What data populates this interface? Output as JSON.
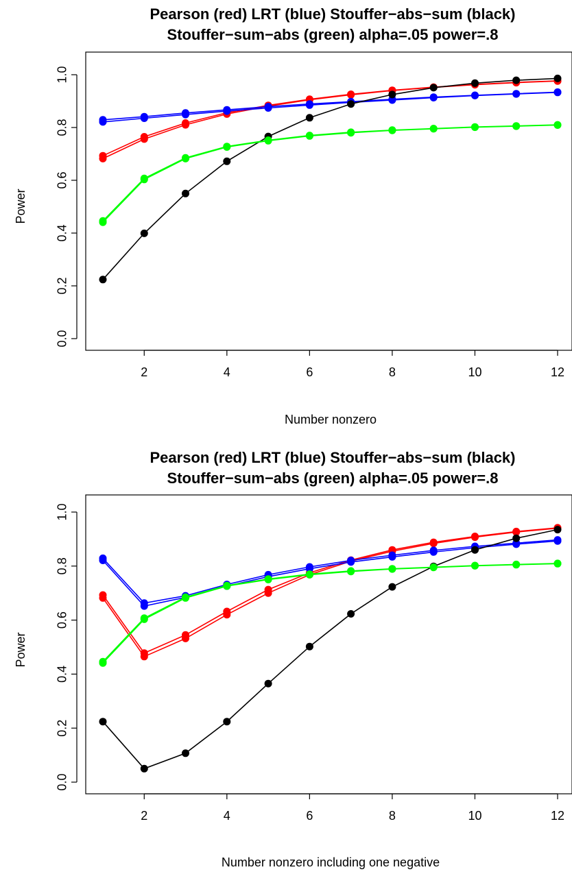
{
  "colors": {
    "red": "#ff0000",
    "blue": "#0000ff",
    "black": "#000000",
    "green": "#00ff00"
  },
  "chart_data": [
    {
      "type": "line",
      "title": "Pearson (red) LRT (blue) Stouffer−abs−sum (black)",
      "subtitle": "Stouffer−sum−abs (green) alpha=.05 power=.8",
      "xlabel": "Number nonzero",
      "ylabel": "Power",
      "xlim": [
        1,
        12
      ],
      "ylim": [
        0,
        1
      ],
      "xticks": [
        "2",
        "4",
        "6",
        "8",
        "10",
        "12"
      ],
      "yticks": [
        "0.0",
        "0.2",
        "0.4",
        "0.6",
        "0.8",
        "1.0"
      ],
      "x": [
        1,
        2,
        3,
        4,
        5,
        6,
        7,
        8,
        9,
        10,
        11,
        12
      ],
      "series": [
        {
          "color": "red",
          "values": [
            0.693,
            0.765,
            0.817,
            0.856,
            0.884,
            0.907,
            0.926,
            0.941,
            0.953,
            0.963,
            0.971,
            0.977
          ]
        },
        {
          "color": "red",
          "values": [
            0.682,
            0.756,
            0.81,
            0.851,
            0.881,
            0.905,
            0.924,
            0.94,
            0.952,
            0.962,
            0.97,
            0.976
          ]
        },
        {
          "color": "blue",
          "values": [
            0.829,
            0.841,
            0.855,
            0.867,
            0.879,
            0.889,
            0.898,
            0.907,
            0.915,
            0.922,
            0.928,
            0.934
          ]
        },
        {
          "color": "blue",
          "values": [
            0.821,
            0.835,
            0.849,
            0.862,
            0.874,
            0.885,
            0.895,
            0.904,
            0.913,
            0.921,
            0.927,
            0.933
          ]
        },
        {
          "color": "black",
          "values": [
            0.224,
            0.399,
            0.55,
            0.672,
            0.766,
            0.837,
            0.889,
            0.925,
            0.951,
            0.968,
            0.979,
            0.986
          ]
        },
        {
          "color": "green",
          "values": [
            0.446,
            0.607,
            0.685,
            0.728,
            0.752,
            0.77,
            0.782,
            0.79,
            0.796,
            0.802,
            0.806,
            0.81
          ]
        },
        {
          "color": "green",
          "values": [
            0.441,
            0.603,
            0.682,
            0.726,
            0.75,
            0.768,
            0.78,
            0.789,
            0.795,
            0.801,
            0.805,
            0.809
          ]
        }
      ]
    },
    {
      "type": "line",
      "title": "Pearson (red) LRT (blue) Stouffer−abs−sum (black)",
      "subtitle": "Stouffer−sum−abs (green) alpha=.05 power=.8",
      "xlabel": "Number nonzero including one negative",
      "ylabel": "Power",
      "xlim": [
        1,
        12
      ],
      "ylim": [
        0,
        1
      ],
      "xticks": [
        "2",
        "4",
        "6",
        "8",
        "10",
        "12"
      ],
      "yticks": [
        "0.0",
        "0.2",
        "0.4",
        "0.6",
        "0.8",
        "1.0"
      ],
      "x": [
        1,
        2,
        3,
        4,
        5,
        6,
        7,
        8,
        9,
        10,
        11,
        12
      ],
      "series": [
        {
          "color": "red",
          "values": [
            0.693,
            0.478,
            0.545,
            0.632,
            0.713,
            0.775,
            0.822,
            0.86,
            0.888,
            0.91,
            0.928,
            0.942
          ]
        },
        {
          "color": "red",
          "values": [
            0.682,
            0.465,
            0.532,
            0.62,
            0.7,
            0.768,
            0.818,
            0.855,
            0.884,
            0.907,
            0.926,
            0.94
          ]
        },
        {
          "color": "blue",
          "values": [
            0.829,
            0.663,
            0.69,
            0.732,
            0.768,
            0.797,
            0.821,
            0.84,
            0.858,
            0.873,
            0.885,
            0.897
          ]
        },
        {
          "color": "blue",
          "values": [
            0.821,
            0.652,
            0.684,
            0.726,
            0.761,
            0.79,
            0.815,
            0.834,
            0.852,
            0.868,
            0.881,
            0.893
          ]
        },
        {
          "color": "black",
          "values": [
            0.224,
            0.05,
            0.107,
            0.224,
            0.365,
            0.502,
            0.623,
            0.723,
            0.799,
            0.86,
            0.903,
            0.935
          ]
        },
        {
          "color": "green",
          "values": [
            0.446,
            0.607,
            0.685,
            0.728,
            0.752,
            0.77,
            0.782,
            0.79,
            0.796,
            0.802,
            0.806,
            0.81
          ]
        },
        {
          "color": "green",
          "values": [
            0.441,
            0.603,
            0.682,
            0.726,
            0.75,
            0.768,
            0.78,
            0.789,
            0.795,
            0.801,
            0.805,
            0.809
          ]
        }
      ]
    }
  ]
}
